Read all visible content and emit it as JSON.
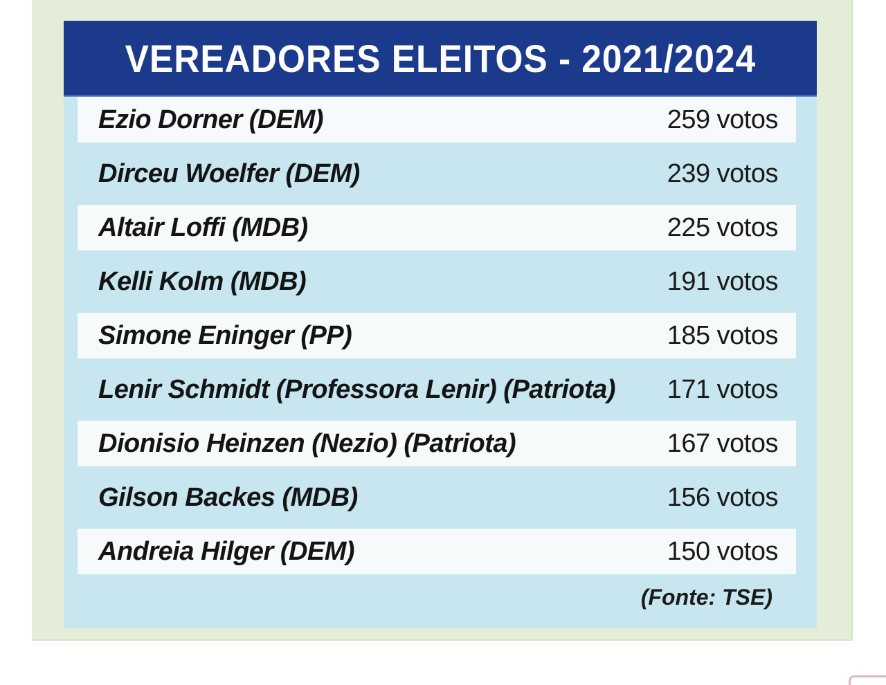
{
  "header": {
    "title": "VEREADORES ELEITOS - 2021/2024"
  },
  "rows": [
    {
      "name": "Ezio Dorner (DEM)",
      "votes": "259 votos"
    },
    {
      "name": "Dirceu Woelfer (DEM)",
      "votes": "239 votos"
    },
    {
      "name": "Altair Loffi (MDB)",
      "votes": "225 votos"
    },
    {
      "name": "Kelli Kolm (MDB)",
      "votes": "191 votos"
    },
    {
      "name": "Simone Eninger (PP)",
      "votes": "185 votos"
    },
    {
      "name": "Lenir Schmidt (Professora Lenir) (Patriota)",
      "votes": "171 votos"
    },
    {
      "name": "Dionisio Heinzen (Nezio) (Patriota)",
      "votes": "167 votos"
    },
    {
      "name": "Gilson Backes (MDB)",
      "votes": "156 votos"
    },
    {
      "name": "Andreia Hilger (DEM)",
      "votes": "150 votos"
    }
  ],
  "footer": {
    "source": "(Fonte: TSE)"
  },
  "colors": {
    "header_background": "#1b3a8c",
    "panel_background": "#c7e6ef",
    "outer_background": "#e3edd7",
    "row_light_background": "#f6fafb"
  }
}
